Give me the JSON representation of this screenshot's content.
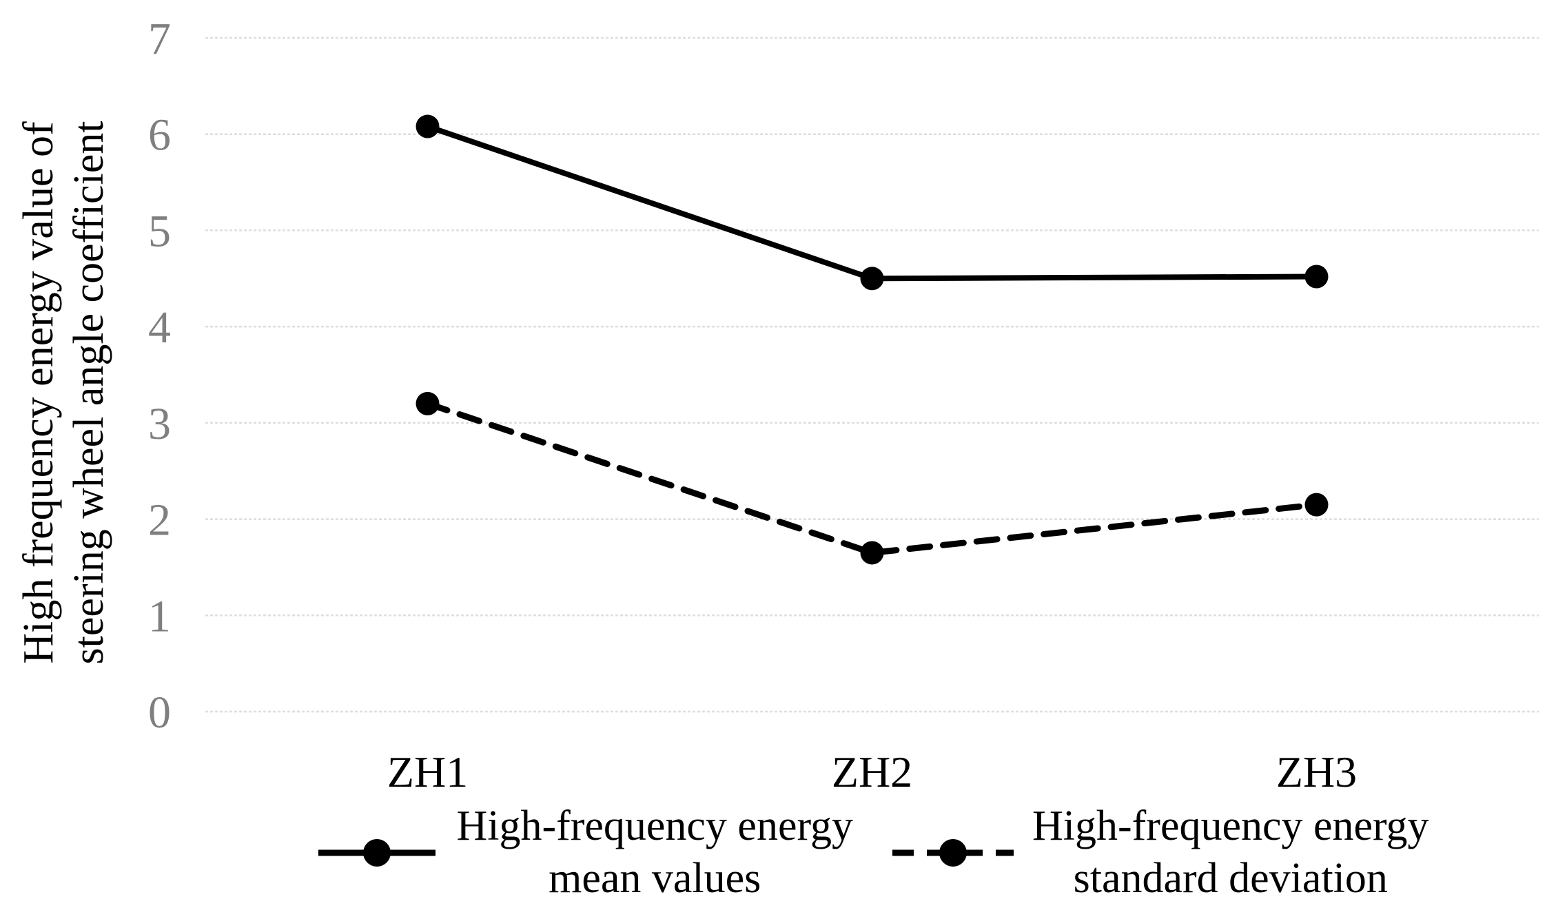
{
  "chart_data": {
    "type": "line",
    "categories": [
      "ZH1",
      "ZH2",
      "ZH3"
    ],
    "series": [
      {
        "name": "High-frequency energy mean values",
        "label_line1": "High-frequency energy",
        "label_line2": "mean values",
        "line_style": "solid",
        "color": "#000000",
        "values": [
          6.08,
          4.5,
          4.52
        ]
      },
      {
        "name": "High-frequency energy standard deviation",
        "label_line1": "High-frequency energy",
        "label_line2": "standard deviation",
        "line_style": "dashed",
        "color": "#000000",
        "values": [
          3.2,
          1.65,
          2.15
        ]
      }
    ],
    "xlabel": "",
    "ylabel_line1": "High frequency energy value of",
    "ylabel_line2": "steering wheel angle coefficient",
    "ylim": [
      0,
      7
    ],
    "yticks": [
      0,
      1,
      2,
      3,
      4,
      5,
      6,
      7
    ],
    "grid": true,
    "legend_position": "bottom"
  },
  "colors": {
    "series": "#000000",
    "tick_label": "#7f7f7f",
    "category_label": "#000000",
    "gridline": "#dedede",
    "background": "#ffffff"
  }
}
